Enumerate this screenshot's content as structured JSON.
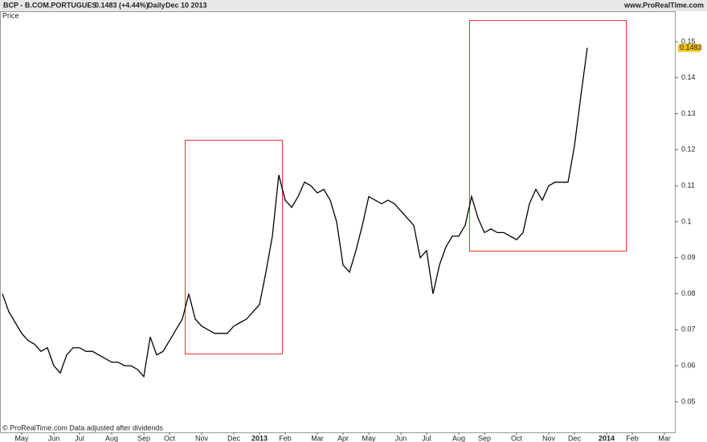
{
  "chart_data": {
    "type": "line",
    "title": "BCP - B.COM.PORTUGUES",
    "header_change": "0.1483 (+4.44%)",
    "header_period": "Daily",
    "header_date": "Dec 10 2013",
    "source": "www.ProRealTime.com",
    "y_label": "Price",
    "footer": "© ProRealTime.com  Data adjusted after dividends",
    "categories": [
      null,
      null,
      null,
      "May",
      null,
      null,
      null,
      null,
      "Jun",
      null,
      null,
      null,
      "Jul",
      null,
      null,
      null,
      null,
      "Aug",
      null,
      null,
      null,
      null,
      "Sep",
      null,
      null,
      null,
      "Oct",
      null,
      null,
      null,
      null,
      "Nov",
      null,
      null,
      null,
      null,
      "Dec",
      null,
      null,
      null,
      "2013",
      null,
      null,
      null,
      "Feb",
      null,
      null,
      null,
      null,
      "Mar",
      null,
      null,
      null,
      "Apr",
      null,
      null,
      null,
      "May",
      null,
      null,
      null,
      null,
      "Jun",
      null,
      null,
      null,
      "Jul",
      null,
      null,
      null,
      null,
      "Aug",
      null,
      null,
      null,
      "Sep",
      null,
      null,
      null,
      null,
      "Oct",
      null,
      null,
      null,
      null,
      "Nov",
      null,
      null,
      null,
      "Dec",
      null,
      null,
      null,
      null,
      "2014",
      null,
      null,
      null,
      "Feb",
      null,
      null,
      null,
      null,
      "Mar"
    ],
    "series": [
      {
        "name": "BCP",
        "color": "#000000",
        "values": [
          0.08,
          0.075,
          0.072,
          0.069,
          0.067,
          0.066,
          0.064,
          0.065,
          0.06,
          0.058,
          0.063,
          0.065,
          0.065,
          0.064,
          0.064,
          0.063,
          0.062,
          0.061,
          0.061,
          0.06,
          0.06,
          0.059,
          0.057,
          0.068,
          0.063,
          0.064,
          0.067,
          0.07,
          0.073,
          0.08,
          0.073,
          0.071,
          0.07,
          0.069,
          0.069,
          0.069,
          0.071,
          0.072,
          0.073,
          0.075,
          0.077,
          0.086,
          0.096,
          0.113,
          0.106,
          0.104,
          0.107,
          0.111,
          0.11,
          0.108,
          0.109,
          0.106,
          0.1,
          0.088,
          0.086,
          0.092,
          0.099,
          0.107,
          0.106,
          0.105,
          0.106,
          0.105,
          0.103,
          0.101,
          0.099,
          0.09,
          0.092,
          0.08,
          0.088,
          0.093,
          0.096,
          0.096,
          0.099,
          0.107,
          0.101,
          0.097,
          0.098,
          0.097,
          0.097,
          0.096,
          0.095,
          0.097,
          0.105,
          0.109,
          0.106,
          0.11,
          0.111,
          0.111,
          0.111,
          0.121,
          0.135,
          0.1483,
          null,
          null,
          null,
          null,
          null,
          null,
          null,
          null,
          null,
          null,
          null,
          null
        ]
      }
    ],
    "ylim": [
      0.0415,
      0.1616
    ],
    "yticks": [
      0.05,
      0.06,
      0.07,
      0.08,
      0.09,
      0.1,
      0.11,
      0.12,
      0.13,
      0.14,
      0.15
    ],
    "grid": false
  }
}
